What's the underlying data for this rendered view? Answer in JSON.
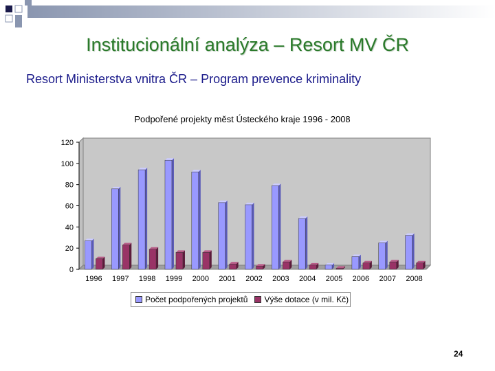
{
  "slide": {
    "title": "Institucionální analýza – Resort MV ČR",
    "subtitle": "Resort Ministerstva vnitra ČR – Program prevence kriminality",
    "page_number": "24",
    "accent_color": "#2a7a2a",
    "subtitle_color": "#1a1a8a"
  },
  "chart_data": {
    "type": "bar",
    "title": "Podpořené projekty měst Ústeckého kraje 1996 - 2008",
    "xlabel": "",
    "ylabel": "",
    "ylim": [
      0,
      120
    ],
    "yticks": [
      "0",
      "20",
      "40",
      "60",
      "80",
      "100",
      "120"
    ],
    "categories": [
      "1996",
      "1997",
      "1998",
      "1999",
      "2000",
      "2001",
      "2002",
      "2003",
      "2004",
      "2005",
      "2006",
      "2007",
      "2008"
    ],
    "series": [
      {
        "name": "Počet podpořených projektů",
        "color": "#9999ff",
        "values": [
          27,
          76,
          94,
          103,
          92,
          63,
          61,
          79,
          48,
          4,
          12,
          25,
          32
        ]
      },
      {
        "name": "Výše dotace (v mil. Kč)",
        "color": "#993366",
        "values": [
          10,
          23,
          19,
          16,
          16,
          5,
          3,
          7,
          4,
          1,
          6,
          7,
          6
        ]
      }
    ],
    "grid": false,
    "legend_position": "bottom"
  }
}
